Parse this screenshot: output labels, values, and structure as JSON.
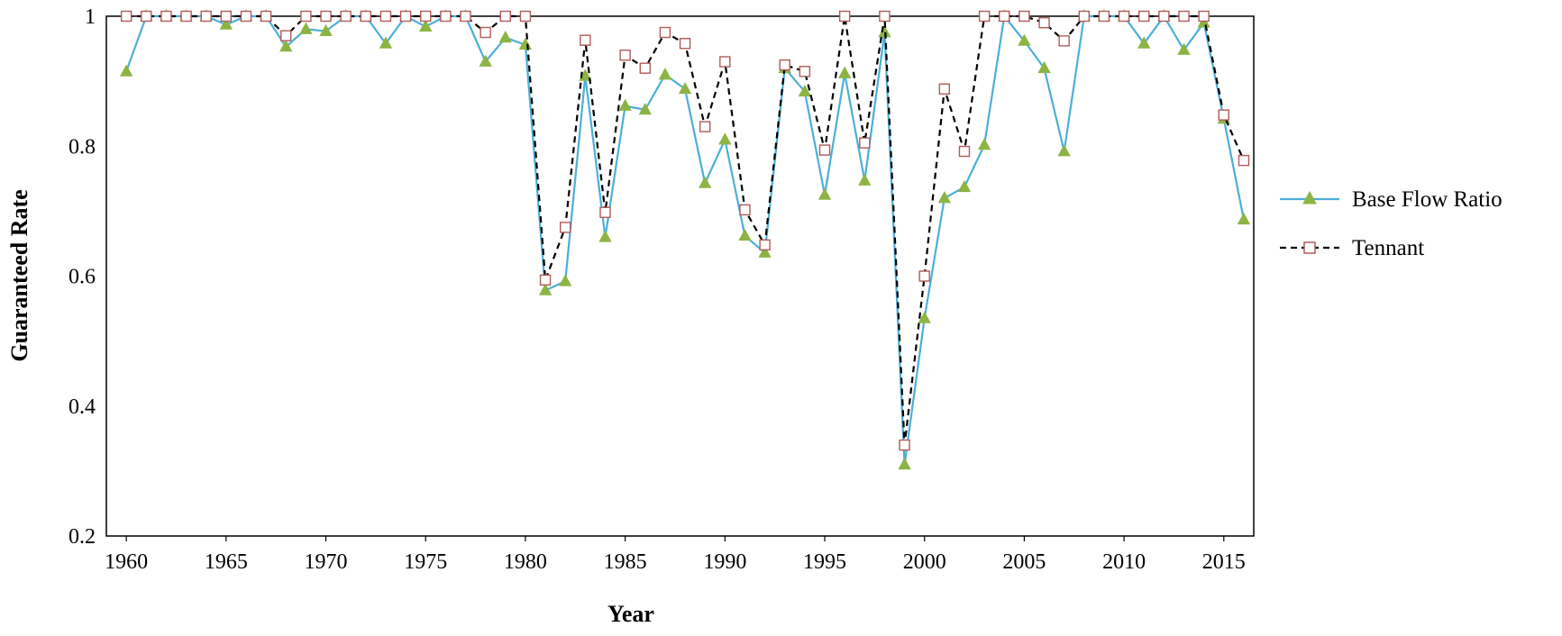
{
  "chart_data": {
    "type": "line",
    "title": "",
    "xlabel": "Year",
    "ylabel": "Guaranteed Rate",
    "xlim": [
      1959,
      2016.5
    ],
    "ylim": [
      0.2,
      1.0
    ],
    "x_ticks": [
      1960,
      1965,
      1970,
      1975,
      1980,
      1985,
      1990,
      1995,
      2000,
      2005,
      2010,
      2015
    ],
    "y_ticks": [
      0.2,
      0.4,
      0.6,
      0.8,
      1
    ],
    "y_tick_labels": [
      "0.2",
      "0.4",
      "0.6",
      "0.8",
      "1"
    ],
    "x_tick_labels": [
      "1960",
      "1965",
      "1970",
      "1975",
      "1980",
      "1985",
      "1990",
      "1995",
      "2000",
      "2005",
      "2010",
      "2015"
    ],
    "grid": false,
    "legend_position": "right",
    "x": [
      1960,
      1961,
      1962,
      1963,
      1964,
      1965,
      1966,
      1967,
      1968,
      1969,
      1970,
      1971,
      1972,
      1973,
      1974,
      1975,
      1976,
      1977,
      1978,
      1979,
      1980,
      1981,
      1982,
      1983,
      1984,
      1985,
      1986,
      1987,
      1988,
      1989,
      1990,
      1991,
      1992,
      1993,
      1994,
      1995,
      1996,
      1997,
      1998,
      1999,
      2000,
      2001,
      2002,
      2003,
      2004,
      2005,
      2006,
      2007,
      2008,
      2009,
      2010,
      2011,
      2012,
      2013,
      2014,
      2015,
      2016
    ],
    "series": [
      {
        "name": "Base Flow Ratio",
        "color": "#4BAFD9",
        "marker": "triangle",
        "marker_color": "#8DB443",
        "line_style": "solid",
        "values": [
          0.915,
          1.0,
          1.0,
          1.0,
          1.0,
          0.987,
          1.0,
          1.0,
          0.953,
          0.98,
          0.977,
          1.0,
          1.0,
          0.958,
          1.0,
          0.984,
          1.0,
          1.0,
          0.93,
          0.967,
          0.956,
          0.578,
          0.592,
          0.908,
          0.66,
          0.862,
          0.856,
          0.91,
          0.888,
          0.743,
          0.81,
          0.662,
          0.636,
          0.92,
          0.884,
          0.725,
          0.912,
          0.747,
          0.975,
          0.31,
          0.535,
          0.72,
          0.737,
          0.802,
          1.0,
          0.962,
          0.92,
          0.792,
          1.0,
          1.0,
          1.0,
          0.958,
          1.0,
          0.948,
          0.99,
          0.842,
          0.687
        ]
      },
      {
        "name": "Tennant",
        "color": "#000000",
        "marker": "square",
        "marker_color": "#B25A5A",
        "line_style": "dashed",
        "values": [
          1.0,
          1.0,
          1.0,
          1.0,
          1.0,
          1.0,
          1.0,
          1.0,
          0.97,
          1.0,
          1.0,
          1.0,
          1.0,
          1.0,
          1.0,
          1.0,
          1.0,
          1.0,
          0.975,
          1.0,
          1.0,
          0.594,
          0.675,
          0.963,
          0.698,
          0.94,
          0.92,
          0.975,
          0.958,
          0.83,
          0.93,
          0.702,
          0.648,
          0.925,
          0.915,
          0.794,
          1.0,
          0.805,
          1.0,
          0.34,
          0.6,
          0.888,
          0.792,
          1.0,
          1.0,
          1.0,
          0.99,
          0.962,
          1.0,
          1.0,
          1.0,
          1.0,
          1.0,
          1.0,
          1.0,
          0.848,
          0.778
        ]
      }
    ]
  }
}
